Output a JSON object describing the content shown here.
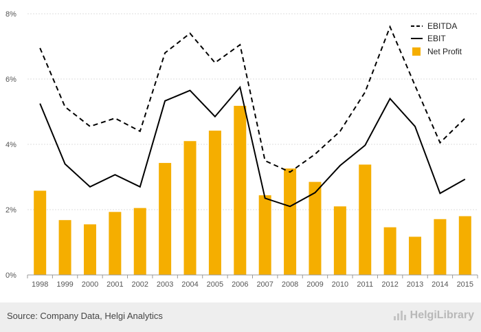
{
  "chart_data": {
    "type": "bar",
    "categories": [
      "1998",
      "1999",
      "2000",
      "2001",
      "2002",
      "2003",
      "2004",
      "2005",
      "2006",
      "2007",
      "2008",
      "2009",
      "2010",
      "2011",
      "2012",
      "2013",
      "2014",
      "2015"
    ],
    "series": [
      {
        "name": "EBITDA",
        "kind": "line",
        "style": "dashed",
        "color": "#000000",
        "values": [
          6.95,
          5.15,
          4.55,
          4.8,
          4.4,
          6.8,
          7.4,
          6.5,
          7.05,
          3.5,
          3.15,
          3.7,
          4.4,
          5.6,
          7.6,
          5.8,
          4.05,
          4.8
        ]
      },
      {
        "name": "EBIT",
        "kind": "line",
        "style": "solid",
        "color": "#000000",
        "values": [
          5.25,
          3.4,
          2.7,
          3.07,
          2.7,
          5.33,
          5.65,
          4.85,
          5.75,
          2.35,
          2.1,
          2.52,
          3.35,
          3.97,
          5.4,
          4.55,
          2.5,
          2.93
        ]
      },
      {
        "name": "Net Profit",
        "kind": "bar",
        "color": "#f5ae00",
        "values": [
          2.58,
          1.68,
          1.55,
          1.93,
          2.05,
          3.43,
          4.1,
          4.42,
          5.18,
          2.44,
          3.26,
          2.85,
          2.1,
          3.38,
          1.46,
          1.17,
          1.71,
          1.8
        ]
      }
    ],
    "y_ticks": [
      "0%",
      "2%",
      "4%",
      "6%",
      "8%"
    ],
    "y_tick_values": [
      0,
      2,
      4,
      6,
      8
    ],
    "ylim": [
      0,
      8
    ],
    "grid": true,
    "legend_position": "top-right",
    "title": "",
    "xlabel": "",
    "ylabel": ""
  },
  "footer": {
    "source": "Source: Company Data, Helgi Analytics",
    "brand": "HelgiLibrary"
  }
}
